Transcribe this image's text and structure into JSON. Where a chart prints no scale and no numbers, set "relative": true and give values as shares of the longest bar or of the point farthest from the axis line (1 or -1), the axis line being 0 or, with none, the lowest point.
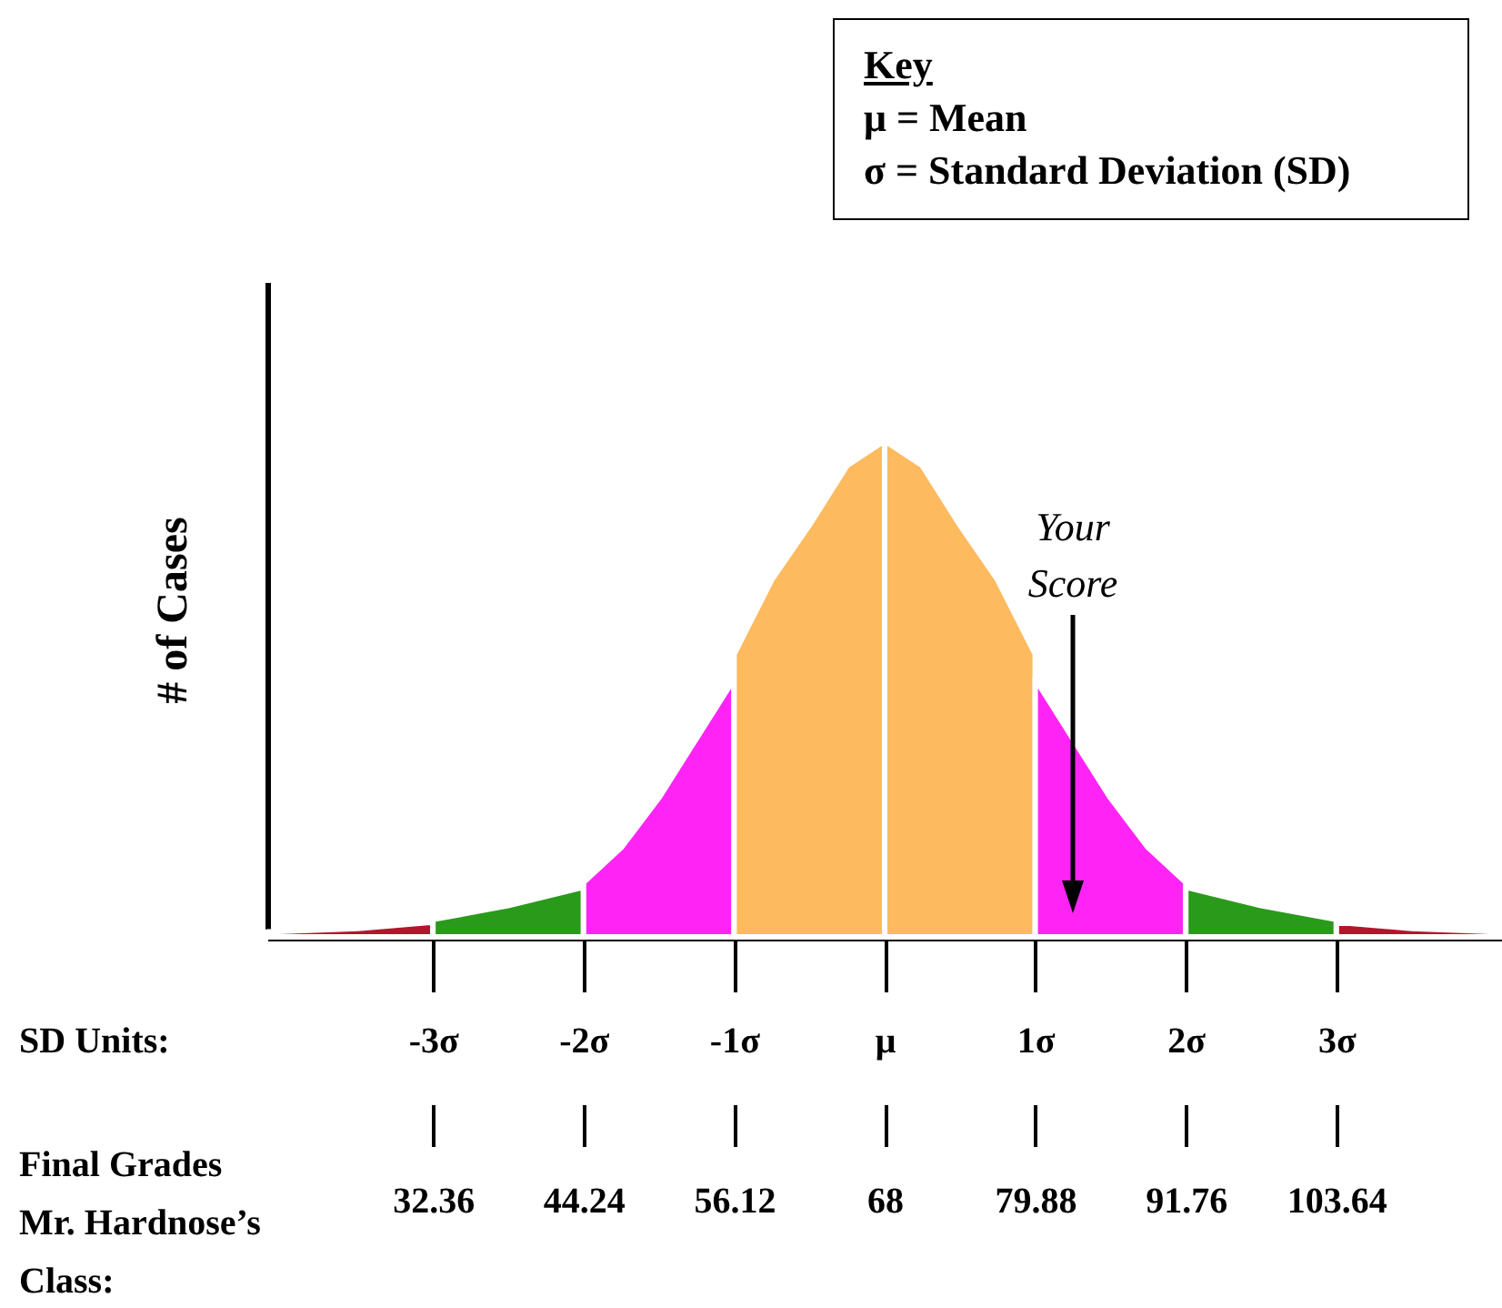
{
  "chart_data": {
    "type": "area",
    "relative": true,
    "ylabel": "# of Cases",
    "xlabel": "SD Units:",
    "x2label": "Final Grades\nMr. Hardnose’s\nClass:",
    "xlim": [
      -4.1,
      4.1
    ],
    "xticks": [
      {
        "value": -3,
        "label": "-3σ"
      },
      {
        "value": -2,
        "label": "-2σ"
      },
      {
        "value": -1,
        "label": "-1σ"
      },
      {
        "value": 0,
        "label": "μ"
      },
      {
        "value": 1,
        "label": "1σ"
      },
      {
        "value": 2,
        "label": "2σ"
      },
      {
        "value": 3,
        "label": "3σ"
      }
    ],
    "x2lim": [
      19.292,
      116.708
    ],
    "x2ticks": [
      32.36,
      44.24,
      56.12,
      68,
      79.88,
      91.76,
      103.64
    ],
    "series": [
      {
        "color": "#b5152b",
        "x": [
          -4.1,
          -3.5,
          -3
        ],
        "values": [
          0.01,
          0.017,
          0.03
        ]
      },
      {
        "color": "#2a9a1a",
        "x": [
          -3,
          -2.5,
          -2
        ],
        "values": [
          0.035,
          0.063,
          0.1
        ]
      },
      {
        "color": "#ff24f5",
        "x": [
          -2,
          -1.75,
          -1.5,
          -1.25,
          -1
        ],
        "values": [
          0.11,
          0.18,
          0.28,
          0.4,
          0.52
        ]
      },
      {
        "color": "#fdba5e",
        "x": [
          -1,
          -0.75,
          -0.5,
          -0.25,
          0
        ],
        "values": [
          0.57,
          0.72,
          0.83,
          0.95,
          1
        ]
      },
      {
        "color": "#fdba5e",
        "x": [
          0,
          0.25,
          0.5,
          0.75,
          1
        ],
        "values": [
          1,
          0.95,
          0.83,
          0.72,
          0.57
        ]
      },
      {
        "color": "#ff24f5",
        "x": [
          1,
          1.25,
          1.5,
          1.75,
          2
        ],
        "values": [
          0.52,
          0.4,
          0.28,
          0.18,
          0.11
        ]
      },
      {
        "color": "#2a9a1a",
        "x": [
          2,
          2.5,
          3
        ],
        "values": [
          0.1,
          0.063,
          0.035
        ]
      },
      {
        "color": "#b5152b",
        "x": [
          3,
          3.5,
          4.1
        ],
        "values": [
          0.03,
          0.017,
          0.01
        ]
      }
    ],
    "annotations": [
      "Key",
      "μ = Mean",
      "σ = Standard Deviation (SD)",
      {
        "text": "Your Score",
        "x": 1.25
      }
    ]
  }
}
